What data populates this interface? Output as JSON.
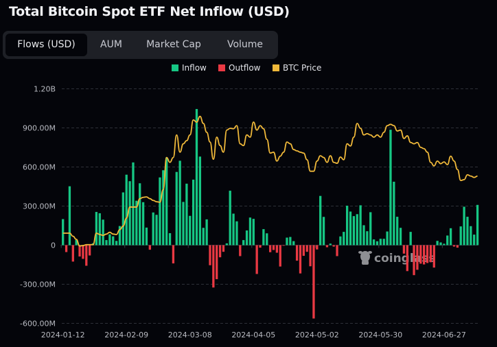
{
  "title": "Total Bitcoin Spot ETF Net Inflow (USD)",
  "tabs": [
    {
      "label": "Flows (USD)",
      "active": true
    },
    {
      "label": "AUM",
      "active": false
    },
    {
      "label": "Market Cap",
      "active": false
    },
    {
      "label": "Volume",
      "active": false
    }
  ],
  "watermark": "coinglass",
  "colors": {
    "inflow": "#16c784",
    "outflow": "#ea3943",
    "btc_price": "#f0b93a",
    "background": "#04050a"
  },
  "chart_data": {
    "type": "bar",
    "title": "Total Bitcoin Spot ETF Net Inflow (USD)",
    "legend": [
      "Inflow",
      "Outflow",
      "BTC Price"
    ],
    "legend_placement": "top",
    "grid": true,
    "ylim": [
      -600000000,
      1200000000
    ],
    "y_ticks": [
      {
        "value": 1200000000,
        "label": "1.20B"
      },
      {
        "value": 900000000,
        "label": "900.00M"
      },
      {
        "value": 600000000,
        "label": "600.00M"
      },
      {
        "value": 300000000,
        "label": "300.00M"
      },
      {
        "value": 0,
        "label": "0"
      },
      {
        "value": -300000000,
        "label": "-300.00M"
      },
      {
        "value": -600000000,
        "label": "-600.00M"
      }
    ],
    "x_ticks": [
      {
        "bar_index": 0,
        "label": "2024-01-12"
      },
      {
        "bar_index": 19,
        "label": "2024-02-09"
      },
      {
        "bar_index": 38,
        "label": "2024-03-08"
      },
      {
        "bar_index": 57,
        "label": "2024-04-05"
      },
      {
        "bar_index": 76,
        "label": "2024-05-02"
      },
      {
        "bar_index": 95,
        "label": "2024-05-30"
      },
      {
        "bar_index": 114,
        "label": "2024-06-27"
      }
    ],
    "net_flow_millions": [
      200,
      -53,
      452,
      -126,
      40,
      -87,
      -105,
      -158,
      -79,
      15,
      255,
      245,
      196,
      39,
      83,
      68,
      33,
      147,
      405,
      541,
      491,
      635,
      341,
      475,
      330,
      135,
      -35,
      251,
      233,
      520,
      575,
      673,
      92,
      -140,
      562,
      648,
      332,
      472,
      225,
      503,
      1045,
      680,
      133,
      198,
      -154,
      -325,
      -261,
      -93,
      -51,
      14,
      418,
      242,
      183,
      -84,
      39,
      113,
      212,
      202,
      -221,
      -19,
      123,
      91,
      -54,
      -37,
      -58,
      -164,
      -4,
      58,
      63,
      31,
      -119,
      -217,
      -82,
      -51,
      -162,
      -563,
      -33,
      378,
      217,
      -16,
      12,
      -11,
      -84,
      67,
      102,
      303,
      258,
      223,
      238,
      306,
      153,
      107,
      253,
      44,
      30,
      49,
      49,
      105,
      886,
      487,
      218,
      133,
      -65,
      -199,
      102,
      -230,
      -189,
      -142,
      -148,
      -137,
      -131,
      -172,
      33,
      21,
      11,
      74,
      130,
      -11,
      -19,
      144,
      295,
      218,
      146,
      81,
      309
    ],
    "btc_price_usd": [
      46600,
      46600,
      46600,
      45900,
      45200,
      43700,
      43800,
      44000,
      44000,
      44000,
      46600,
      46300,
      46100,
      46400,
      46800,
      46400,
      46300,
      47400,
      48200,
      50000,
      52500,
      52500,
      52500,
      54400,
      54700,
      54800,
      54400,
      54000,
      53700,
      53600,
      56400,
      63700,
      62600,
      63700,
      68800,
      64900,
      66800,
      67500,
      68800,
      72200,
      71700,
      73000,
      71400,
      69400,
      67200,
      63300,
      68300,
      66400,
      64900,
      69900,
      70300,
      70200,
      70900,
      66800,
      66400,
      68800,
      68300,
      71700,
      69900,
      70900,
      70200,
      67800,
      64700,
      64900,
      62900,
      64000,
      64900,
      67200,
      66800,
      65500,
      65200,
      64900,
      64700,
      63200,
      60600,
      60600,
      62900,
      64100,
      63700,
      62600,
      64100,
      62600,
      62400,
      63800,
      63200,
      66800,
      66300,
      68300,
      71400,
      70300,
      68800,
      69100,
      68800,
      68300,
      68800,
      68300,
      69400,
      70900,
      71200,
      70900,
      69700,
      69900,
      68000,
      68600,
      67100,
      66800,
      67100,
      66000,
      65700,
      64900,
      62600,
      61800,
      62900,
      62300,
      62700,
      62100,
      64000,
      62900,
      61000,
      58500,
      58700,
      59800,
      59500,
      59200,
      59500
    ]
  }
}
